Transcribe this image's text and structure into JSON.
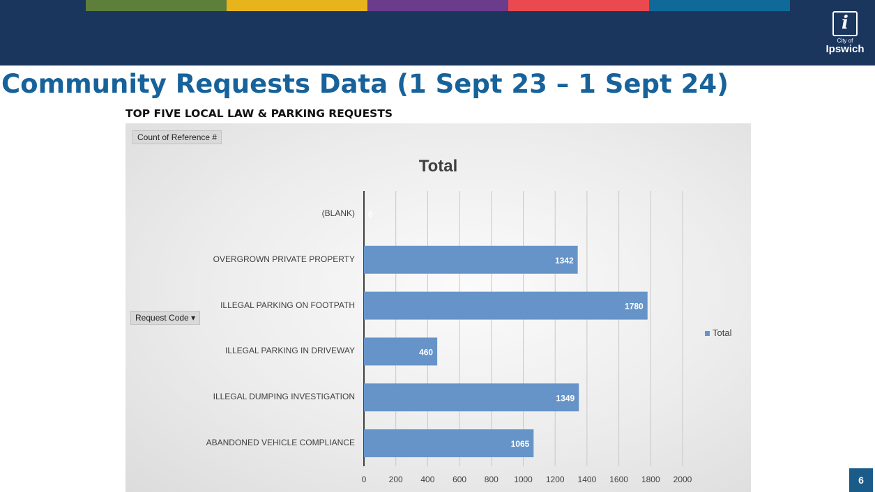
{
  "header": {
    "stripe_colors": [
      "#5e7e3c",
      "#e8b41c",
      "#6b3c8c",
      "#ea4a4f",
      "#0f6a9a"
    ],
    "logo": {
      "small": "City of",
      "name": "Ipswich"
    }
  },
  "slide": {
    "title": "Community Requests Data (1 Sept 23 – 1 Sept 24)",
    "subtitle": "TOP FIVE LOCAL LAW & PARKING REQUESTS",
    "page_number": "6"
  },
  "pivot": {
    "count_button": "Count of Reference  #",
    "row_field_button": "Request Code",
    "row_field_arrow": "▾"
  },
  "chart_data": {
    "type": "bar",
    "orientation": "horizontal",
    "title": "Total",
    "categories": [
      "(BLANK)",
      "OVERGROWN PRIVATE PROPERTY",
      "ILLEGAL PARKING ON FOOTPATH",
      "ILLEGAL PARKING IN DRIVEWAY",
      "ILLEGAL DUMPING INVESTIGATION",
      "ABANDONED VEHICLE COMPLIANCE"
    ],
    "series": [
      {
        "name": "Total",
        "values": [
          0,
          1342,
          1780,
          460,
          1349,
          1065
        ],
        "color": "#6694c8"
      }
    ],
    "xlim": [
      0,
      2000
    ],
    "xticks": [
      0,
      200,
      400,
      600,
      800,
      1000,
      1200,
      1400,
      1600,
      1800,
      2000
    ],
    "grid": true,
    "legend": "right"
  }
}
